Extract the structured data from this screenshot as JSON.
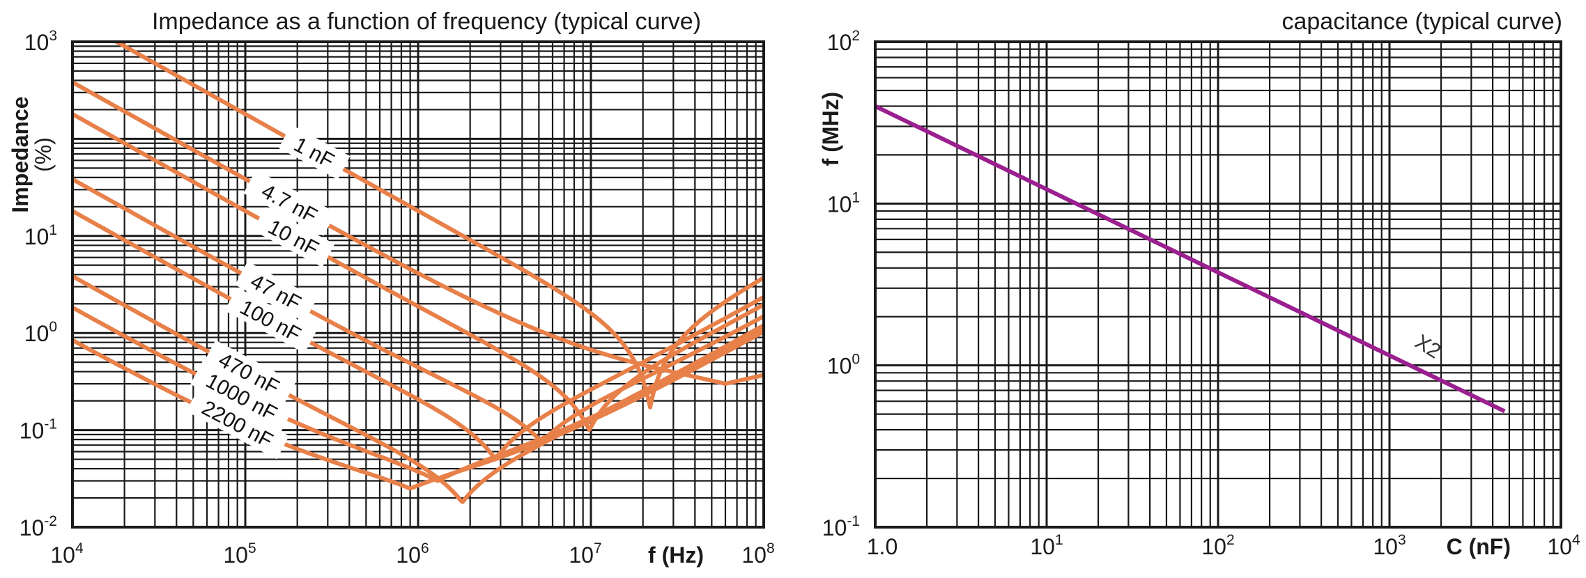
{
  "chart_data": [
    {
      "type": "line",
      "title": "Impedance as a function of frequency (typical curve)",
      "xlabel": "f (Hz)",
      "ylabel": "Impedance (%)",
      "ylabel_lines": [
        "Impedance",
        "(%)"
      ],
      "xscale": "log",
      "yscale": "log",
      "xlim": [
        10000,
        100000000
      ],
      "ylim": [
        0.01,
        1000
      ],
      "x_ticks": [
        {
          "base": "10",
          "exp": "4"
        },
        {
          "base": "10",
          "exp": "5"
        },
        {
          "base": "10",
          "exp": "6"
        },
        {
          "base": "10",
          "exp": "7"
        },
        {
          "base": "10",
          "exp": "8"
        }
      ],
      "y_ticks": [
        {
          "base": "10",
          "exp": "-2"
        },
        {
          "base": "10",
          "exp": "-1"
        },
        {
          "base": "10",
          "exp": "0"
        },
        {
          "base": "10",
          "exp": "1"
        },
        {
          "base": "10",
          "exp": "3"
        }
      ],
      "grid": true,
      "line_color": "#e8804a",
      "series": [
        {
          "name": "1 nF",
          "capacitance_nF": 1,
          "resonance_Hz": 22000000,
          "min_impedance": 0.17
        },
        {
          "name": "4.7 nF",
          "capacitance_nF": 4.7,
          "resonance_Hz": 60000000,
          "min_impedance": 0.3
        },
        {
          "name": "10 nF",
          "capacitance_nF": 10,
          "resonance_Hz": 9800000,
          "min_impedance": 0.1
        },
        {
          "name": "47 nF",
          "capacitance_nF": 47,
          "resonance_Hz": 5200000,
          "min_impedance": 0.075
        },
        {
          "name": "100 nF",
          "capacitance_nF": 100,
          "resonance_Hz": 2800000,
          "min_impedance": 0.05
        },
        {
          "name": "470 nF",
          "capacitance_nF": 470,
          "resonance_Hz": 1800000,
          "min_impedance": 0.018
        },
        {
          "name": "1000 nF",
          "capacitance_nF": 1000,
          "resonance_Hz": 1300000,
          "min_impedance": 0.03
        },
        {
          "name": "2200 nF",
          "capacitance_nF": 2200,
          "resonance_Hz": 900000,
          "min_impedance": 0.025
        }
      ]
    },
    {
      "type": "line",
      "title": "capacitance (typical curve)",
      "xlabel": "C (nF)",
      "ylabel": "f (MHz)",
      "xscale": "log",
      "yscale": "log",
      "xlim": [
        1,
        10000
      ],
      "ylim": [
        0.1,
        100
      ],
      "x_ticks": [
        {
          "base": "1.0",
          "exp": ""
        },
        {
          "base": "10",
          "exp": "1"
        },
        {
          "base": "10",
          "exp": "2"
        },
        {
          "base": "10",
          "exp": "3"
        },
        {
          "base": "10",
          "exp": "4"
        }
      ],
      "y_ticks": [
        {
          "base": "10",
          "exp": "-1"
        },
        {
          "base": "10",
          "exp": "0"
        },
        {
          "base": "10",
          "exp": "1"
        },
        {
          "base": "10",
          "exp": "2"
        }
      ],
      "grid": true,
      "line_color": "#9a1f8f",
      "series": [
        {
          "name": "X2",
          "x": [
            1,
            4700
          ],
          "y": [
            40,
            0.52
          ]
        }
      ]
    }
  ]
}
